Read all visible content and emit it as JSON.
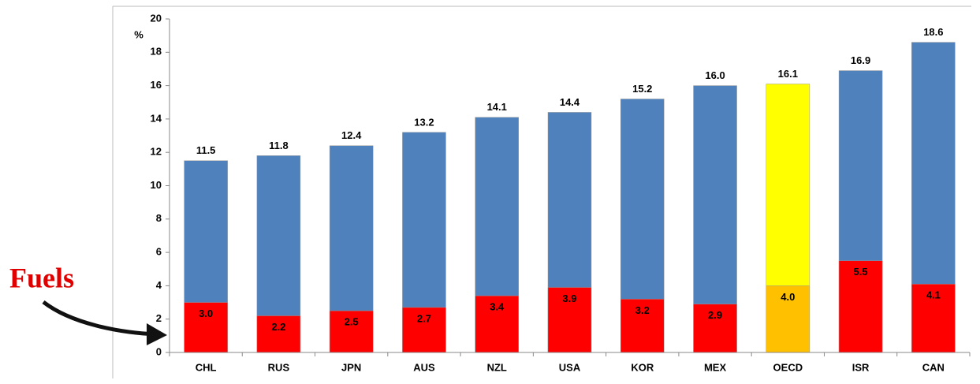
{
  "chart_data": {
    "type": "bar",
    "y_label": "%",
    "annotation": "Fuels",
    "categories": [
      "CHL",
      "RUS",
      "JPN",
      "AUS",
      "NZL",
      "USA",
      "KOR",
      "MEX",
      "OECD",
      "ISR",
      "CAN"
    ],
    "series": [
      {
        "values": [
          11.5,
          11.8,
          12.4,
          13.2,
          14.1,
          14.4,
          15.2,
          16.0,
          16.1,
          16.9,
          18.6
        ],
        "value_labels": [
          "11.5",
          "11.8",
          "12.4",
          "13.2",
          "14.1",
          "14.4",
          "15.2",
          "16.0",
          "16.1",
          "16.9",
          "18.6"
        ],
        "colors": [
          "#4f81bd",
          "#4f81bd",
          "#4f81bd",
          "#4f81bd",
          "#4f81bd",
          "#4f81bd",
          "#4f81bd",
          "#4f81bd",
          "#ffff00",
          "#4f81bd",
          "#4f81bd"
        ]
      },
      {
        "values": [
          3.0,
          2.2,
          2.5,
          2.7,
          3.4,
          3.9,
          3.2,
          2.9,
          4.0,
          5.5,
          4.1
        ],
        "value_labels": [
          "3.0",
          "2.2",
          "2.5",
          "2.7",
          "3.4",
          "3.9",
          "3.2",
          "2.9",
          "4.0",
          "5.5",
          "4.1"
        ],
        "colors": [
          "#ff0000",
          "#ff0000",
          "#ff0000",
          "#ff0000",
          "#ff0000",
          "#ff0000",
          "#ff0000",
          "#ff0000",
          "#ffc000",
          "#ff0000",
          "#ff0000"
        ]
      }
    ],
    "overlap": true,
    "ylim": [
      0,
      20
    ],
    "yticks": [
      0,
      2,
      4,
      6,
      8,
      10,
      12,
      14,
      16,
      18,
      20
    ],
    "grid": false
  }
}
